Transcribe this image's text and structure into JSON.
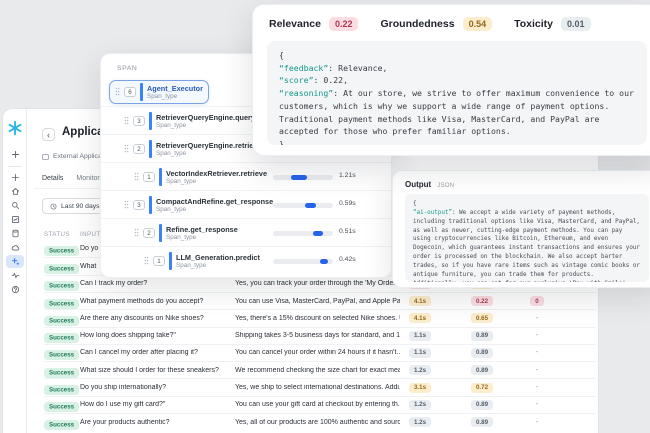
{
  "colors": {
    "accent_blue": "#2563eb",
    "snowflake_cyan": "#29b5e8",
    "success_green": "#22795a",
    "tone_red_bg": "#fadde3",
    "tone_amber_bg": "#fcedcd",
    "tone_gray_bg": "#e9ecf0",
    "page_bg": "#e9eaec"
  },
  "top_panel": {
    "metrics": [
      {
        "label": "Relevance",
        "value": "0.22",
        "tone": "red"
      },
      {
        "label": "Groundedness",
        "value": "0.54",
        "tone": "amber"
      },
      {
        "label": "Toxicity",
        "value": "0.01",
        "tone": "gray"
      }
    ],
    "code_open": "{",
    "code_lines": [
      {
        "key": "“feedback”",
        "rest": ": Relevance,"
      },
      {
        "key": "“score”",
        "rest": ": 0.22,"
      },
      {
        "key": "“reasoning”",
        "rest": ": At our store, we strive to offer maximum convenience to our customers, which is why we support a wide range of payment options. Traditional payment methods like Visa, MasterCard, and PayPal are accepted for those who prefer familiar options."
      }
    ],
    "code_close": "}"
  },
  "span_panel": {
    "header": "SPAN",
    "rows": [
      {
        "name": "Agent_Executor",
        "type": "Span_type",
        "badge": "6",
        "depth": 0,
        "selected": true,
        "bar": null,
        "time": ""
      },
      {
        "name": "RetrieverQueryEngine.query",
        "type": "Span_type",
        "badge": "3",
        "depth": 1,
        "selected": false,
        "bar": null,
        "time": ""
      },
      {
        "name": "RetrieverQueryEngine.retrieve",
        "type": "Span_type",
        "badge": "2",
        "depth": 1,
        "selected": false,
        "bar": null,
        "time": ""
      },
      {
        "name": "VectorIndexRetriever.retrieve",
        "type": "Span_type",
        "badge": "1",
        "depth": 2,
        "selected": false,
        "bar": {
          "start": 30,
          "width": 26
        },
        "time": "1.21s"
      },
      {
        "name": "CompactAndRefine.get_response",
        "type": "Span_type",
        "badge": "3",
        "depth": 1,
        "selected": false,
        "bar": {
          "start": 54,
          "width": 18
        },
        "time": "0.59s"
      },
      {
        "name": "Refine.get_response",
        "type": "Span_type",
        "badge": "2",
        "depth": 2,
        "selected": false,
        "bar": {
          "start": 66,
          "width": 17
        },
        "time": "0.51s"
      },
      {
        "name": "LLM_Generation.predict",
        "type": "Span_type",
        "badge": "1",
        "depth": 3,
        "selected": false,
        "bar": {
          "start": 78,
          "width": 14
        },
        "time": "0.42s"
      }
    ]
  },
  "output_panel": {
    "title": "Output",
    "format": "JSON",
    "code_open": "{",
    "code_key": "“ai-output”",
    "code_rest": ": We accept a wide variety of payment methods, including traditional options like Visa, MasterCard, and PayPal, as well as newer, cutting-edge payment methods. You can pay using cryptocurrencies like Bitcoin, Ethereum, and even Dogecoin, which guarantees instant transactions and ensures your order is processed on the blockchain. We also accept barter trades, so if you have rare items such as vintage comic books or antique furniture, you can trade them for products. Additionally, you can opt for our exclusive 'Pay with Smile' service where a positive rating on social media gives you a discount. Our futuristic drone payment option is also available in select regions-just scan your order QR code with your drone, and the payment will be processed wirelessly.",
    "code_close": "}"
  },
  "app": {
    "sidebar": {
      "logo": "snowflake-logo",
      "items": [
        {
          "name": "plus-icon",
          "selected": false
        },
        {
          "name": "home-icon",
          "selected": false
        },
        {
          "name": "search-icon",
          "selected": false
        },
        {
          "name": "projects-icon",
          "selected": false
        },
        {
          "name": "database-icon",
          "selected": false
        },
        {
          "name": "cloud-icon",
          "selected": false
        },
        {
          "name": "ai-sparkle-icon",
          "selected": true
        },
        {
          "name": "activity-icon",
          "selected": false
        },
        {
          "name": "help-icon",
          "selected": false
        }
      ]
    },
    "header": {
      "back": "‹",
      "title": "Application",
      "subtitle": "External Application"
    },
    "tabs": [
      "Details",
      "Monitoring"
    ],
    "filter": {
      "label": "Last 90 days"
    },
    "table": {
      "headers": [
        "STATUS",
        "INPUT"
      ],
      "rows": [
        {
          "status": "Success",
          "input": "Do yo",
          "output": "",
          "latency": null,
          "score": null,
          "flag": ""
        },
        {
          "status": "Success",
          "input": "What",
          "output": "",
          "latency": null,
          "score": null,
          "flag": ""
        },
        {
          "status": "Success",
          "input": "Can I track my order?",
          "output": "Yes, you can track your order through the 'My Orders...",
          "latency": {
            "text": "5.1s",
            "tone": "red"
          },
          "score": {
            "text": "0.85",
            "tone": "amber"
          },
          "flag": "-"
        },
        {
          "status": "Success",
          "input": "What payment methods do you accept?",
          "output": "You can use Visa, MasterCard, PayPal, and Apple Pay...",
          "latency": {
            "text": "4.1s",
            "tone": "amber"
          },
          "score": {
            "text": "0.22",
            "tone": "red"
          },
          "flag": "0"
        },
        {
          "status": "Success",
          "input": "Are there any discounts on Nike shoes?",
          "output": "Yes, there's a 15% discount on selected Nike shoes. U...",
          "latency": {
            "text": "4.1s",
            "tone": "amber"
          },
          "score": {
            "text": "0.65",
            "tone": "amber"
          },
          "flag": "-"
        },
        {
          "status": "Success",
          "input": "How long does shipping take?\"",
          "output": "Shipping takes 3-5 business days for standard, and 1...",
          "latency": {
            "text": "1.1s",
            "tone": "gray"
          },
          "score": {
            "text": "0.89",
            "tone": "gray"
          },
          "flag": "-"
        },
        {
          "status": "Success",
          "input": "Can I cancel my order after placing it?",
          "output": "You can cancel your order within 24 hours if it hasn't...",
          "latency": {
            "text": "1.1s",
            "tone": "gray"
          },
          "score": {
            "text": "0.89",
            "tone": "gray"
          },
          "flag": "-"
        },
        {
          "status": "Success",
          "input": "What size should I order for these sneakers?",
          "output": "We recommend checking the size chart for exact mea...",
          "latency": {
            "text": "1.2s",
            "tone": "gray"
          },
          "score": {
            "text": "0.89",
            "tone": "gray"
          },
          "flag": "-"
        },
        {
          "status": "Success",
          "input": "Do you ship internationally?",
          "output": "Yes, we ship to select international destinations. Addi...",
          "latency": {
            "text": "3.1s",
            "tone": "amber"
          },
          "score": {
            "text": "0.72",
            "tone": "amber"
          },
          "flag": "-"
        },
        {
          "status": "Success",
          "input": "How do I use my gift card?\"",
          "output": "You can use your gift card at checkout by entering th...",
          "latency": {
            "text": "1.2s",
            "tone": "gray"
          },
          "score": {
            "text": "0.89",
            "tone": "gray"
          },
          "flag": "-"
        },
        {
          "status": "Success",
          "input": "Are your products authentic?",
          "output": "Yes, all of our products are 100% authentic and sourc...",
          "latency": {
            "text": "1.2s",
            "tone": "gray"
          },
          "score": {
            "text": "0.89",
            "tone": "gray"
          },
          "flag": "-"
        }
      ]
    }
  }
}
